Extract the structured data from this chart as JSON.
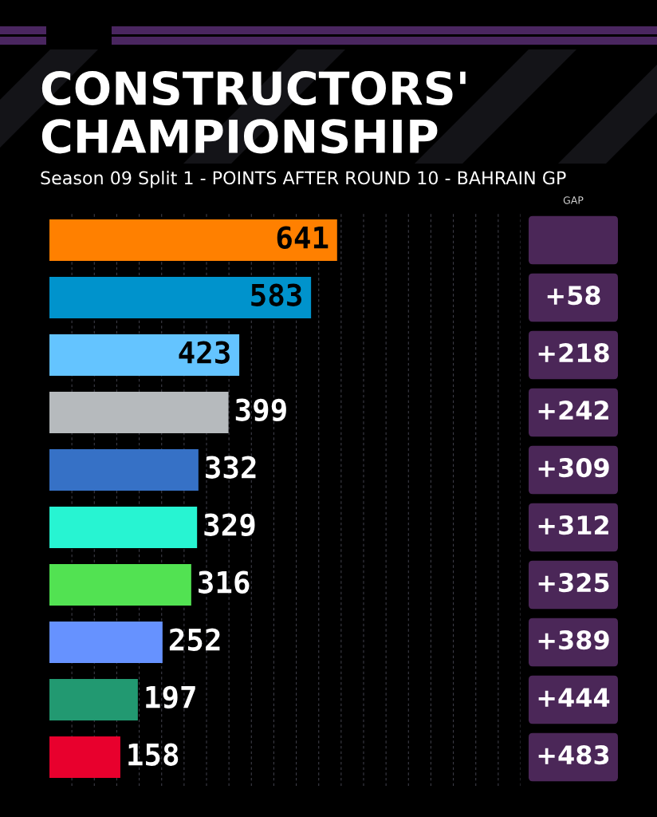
{
  "chart_data": {
    "type": "bar",
    "orientation": "horizontal",
    "title": "CONSTRUCTORS'\nCHAMPIONSHIP",
    "subtitle": "Season 09 Split 1 - POINTS AFTER ROUND 10 - BAHRAIN GP",
    "categories": [
      null,
      null,
      null,
      null,
      null,
      null,
      null,
      null,
      null,
      null
    ],
    "values": [
      641,
      583,
      423,
      399,
      332,
      329,
      316,
      252,
      197,
      158
    ],
    "colors": [
      "#ff8000",
      "#0093cc",
      "#64c4ff",
      "#b6babd",
      "#3671c6",
      "#27f4d2",
      "#52e252",
      "#6692ff",
      "#229971",
      "#e8002d"
    ],
    "data_labels": true,
    "xlim": [
      0,
      1050
    ],
    "xticks": [
      {
        "value": 50,
        "label": null
      },
      {
        "value": 100,
        "label": null
      },
      {
        "value": 150,
        "label": null
      },
      {
        "value": 200,
        "label": null
      },
      {
        "value": 250,
        "label": null
      },
      {
        "value": 300,
        "label": null
      },
      {
        "value": 350,
        "label": null
      },
      {
        "value": 400,
        "label": null
      },
      {
        "value": 450,
        "label": null
      },
      {
        "value": 500,
        "label": null
      },
      {
        "value": 550,
        "label": null
      },
      {
        "value": 600,
        "label": null
      },
      {
        "value": 650,
        "label": null
      },
      {
        "value": 700,
        "label": null
      },
      {
        "value": 750,
        "label": null
      },
      {
        "value": 800,
        "label": null
      },
      {
        "value": 850,
        "label": null
      },
      {
        "value": 900,
        "label": null
      },
      {
        "value": 950,
        "label": null
      },
      {
        "value": 1000,
        "label": null
      },
      {
        "value": 1050,
        "label": null
      }
    ],
    "grid": "x",
    "annotations": [
      "GAP",
      "+58",
      "+218",
      "+242",
      "+309",
      "+312",
      "+325",
      "+389",
      "+444",
      "+483"
    ]
  }
}
